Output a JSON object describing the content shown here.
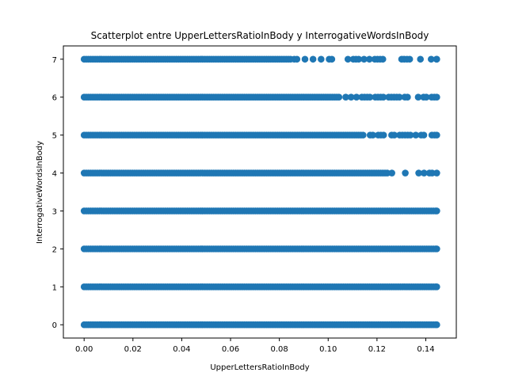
{
  "chart_data": {
    "type": "scatter",
    "title": "Scatterplot entre UpperLettersRatioInBody y InterrogativeWordsInBody",
    "xlabel": "UpperLettersRatioInBody",
    "ylabel": "InterrogativeWordsInBody",
    "xlim": [
      -0.0085,
      0.1525
    ],
    "ylim": [
      -0.35,
      7.35
    ],
    "x_ticks": [
      0.0,
      0.02,
      0.04,
      0.06,
      0.08,
      0.1,
      0.12,
      0.14
    ],
    "x_tick_labels": [
      "0.00",
      "0.02",
      "0.04",
      "0.06",
      "0.08",
      "0.10",
      "0.12",
      "0.14"
    ],
    "y_ticks": [
      0,
      1,
      2,
      3,
      4,
      5,
      6,
      7
    ],
    "y_tick_labels": [
      "0",
      "1",
      "2",
      "3",
      "4",
      "5",
      "6",
      "7"
    ],
    "grid": false,
    "marker_color": "#1f77b4",
    "series": [
      {
        "values": [
          {
            "y": 0,
            "x_min": 0.0,
            "x_max": 0.1445,
            "density": "dense"
          },
          {
            "y": 1,
            "x_min": 0.0,
            "x_max": 0.1445,
            "density": "dense"
          },
          {
            "y": 2,
            "x_min": 0.0,
            "x_max": 0.1445,
            "density": "dense"
          },
          {
            "y": 3,
            "x_min": 0.0,
            "x_max": 0.1445,
            "density": "dense"
          },
          {
            "y": 4,
            "x_min": 0.0,
            "x_max": 0.1445,
            "density": "dense-sparse-tail",
            "dense_until": 0.125
          },
          {
            "y": 5,
            "x_min": 0.0,
            "x_max": 0.1445,
            "density": "dense-sparse-tail",
            "dense_until": 0.115
          },
          {
            "y": 6,
            "x_min": 0.0,
            "x_max": 0.1445,
            "density": "dense-sparse-tail",
            "dense_until": 0.105
          },
          {
            "y": 7,
            "x_min": 0.0,
            "x_max": 0.1445,
            "density": "dense-sparse-tail",
            "dense_until": 0.085
          }
        ]
      }
    ]
  }
}
